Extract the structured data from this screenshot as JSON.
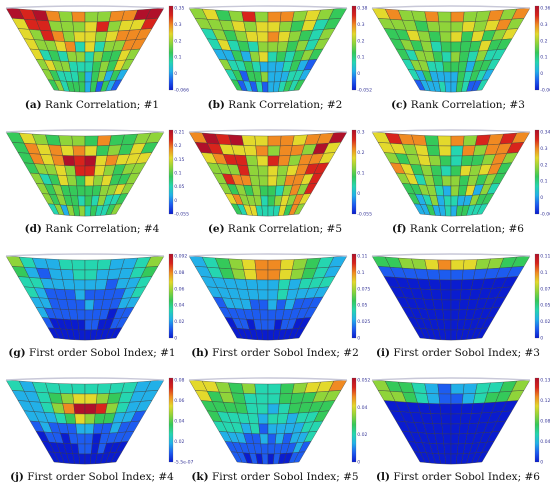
{
  "panels": [
    {
      "id": "a",
      "letter": "(a)",
      "caption": "Rank Correlation; #1",
      "colorbar": [
        "0.35",
        "0.3",
        "0.2",
        "0.1",
        "0",
        "-0.066"
      ],
      "pattern": "rank1"
    },
    {
      "id": "b",
      "letter": "(b)",
      "caption": "Rank Correlation; #2",
      "colorbar": [
        "0.38",
        "0.3",
        "0.2",
        "0.1",
        "0",
        "-0.052"
      ],
      "pattern": "rank2"
    },
    {
      "id": "c",
      "letter": "(c)",
      "caption": "Rank Correlation; #3",
      "colorbar": [
        "0.36",
        "0.3",
        "0.2",
        "0.1",
        "0",
        "-0.066"
      ],
      "pattern": "rank3"
    },
    {
      "id": "d",
      "letter": "(d)",
      "caption": "Rank Correlation; #4",
      "colorbar": [
        "0.21",
        "0.2",
        "0.15",
        "0.1",
        "0.05",
        "0",
        "-0.055"
      ],
      "pattern": "rank4"
    },
    {
      "id": "e",
      "letter": "(e)",
      "caption": "Rank Correlation; #5",
      "colorbar": [
        "0.3",
        "0.2",
        "0.1",
        "0",
        "-0.055"
      ],
      "pattern": "rank5"
    },
    {
      "id": "f",
      "letter": "(f)",
      "caption": "Rank Correlation; #6",
      "colorbar": [
        "0.34",
        "0.3",
        "0.2",
        "0.1",
        "0",
        "-0.066"
      ],
      "pattern": "rank6"
    },
    {
      "id": "g",
      "letter": "(g)",
      "caption": "First order Sobol Index; #1",
      "colorbar": [
        "0.092",
        "0.08",
        "0.06",
        "0.04",
        "0.02",
        "0"
      ],
      "pattern": "sobol1"
    },
    {
      "id": "h",
      "letter": "(h)",
      "caption": "First order Sobol Index; #2",
      "colorbar": [
        "0.11",
        "0.1",
        "0.075",
        "0.05",
        "0.025",
        "0"
      ],
      "pattern": "sobol2"
    },
    {
      "id": "i",
      "letter": "(i)",
      "caption": "First order Sobol Index; #3",
      "colorbar": [
        "0.11",
        "0.1",
        "0.075",
        "0.05",
        "0.025",
        "0"
      ],
      "pattern": "sobol3"
    },
    {
      "id": "j",
      "letter": "(j)",
      "caption": "First order Sobol Index; #4",
      "colorbar": [
        "0.08",
        "0.06",
        "0.04",
        "0.02",
        "-5.5e-07"
      ],
      "pattern": "sobol4"
    },
    {
      "id": "k",
      "letter": "(k)",
      "caption": "First order Sobol Index; #5",
      "colorbar": [
        "0.052",
        "0.04",
        "0.02",
        "0"
      ],
      "pattern": "sobol5"
    },
    {
      "id": "l",
      "letter": "(l)",
      "caption": "First order Sobol Index; #6",
      "colorbar": [
        "0.13",
        "0.12",
        "0.08",
        "0.04",
        "0"
      ],
      "pattern": "sobol6"
    }
  ],
  "colors": {
    "mesh_line": "#3a3a3a",
    "rim": "#c8c8d8",
    "colormap": [
      "#0a1ccf",
      "#1d5cf0",
      "#22b0e8",
      "#25d6b0",
      "#35c95a",
      "#8fd43a",
      "#e3d92c",
      "#f08a22",
      "#d8241c",
      "#b0102a"
    ]
  }
}
